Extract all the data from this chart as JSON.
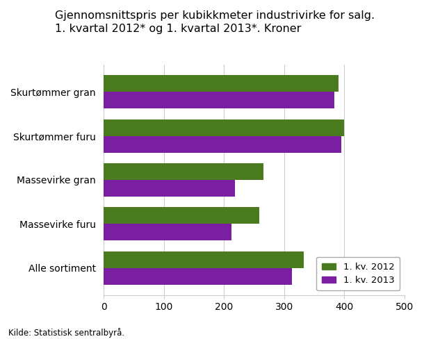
{
  "title_line1": "Gjennomsnittspris per kubikkmeter industrivirke for salg.",
  "title_line2": "1. kvartal 2012* og 1. kvartal 2013*. Kroner",
  "categories": [
    "Skurtømmer gran",
    "Skurtømmer furu",
    "Massevirke gran",
    "Massevirke furu",
    "Alle sortiment"
  ],
  "values_2012": [
    390,
    400,
    265,
    258,
    333
  ],
  "values_2013": [
    383,
    395,
    218,
    212,
    313
  ],
  "color_2012": "#4a7c1f",
  "color_2013": "#7b1fa2",
  "legend_2012": "1. kv. 2012",
  "legend_2013": "1. kv. 2013",
  "xlim": [
    0,
    500
  ],
  "xticks": [
    0,
    100,
    200,
    300,
    400,
    500
  ],
  "source": "Kilde: Statistisk sentralbyrå.",
  "title_fontsize": 11.5,
  "bar_height": 0.38,
  "background_color": "#ffffff",
  "grid_color": "#cccccc"
}
